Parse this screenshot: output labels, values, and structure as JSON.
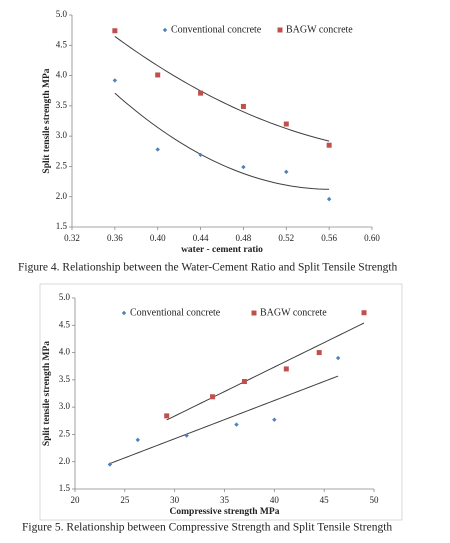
{
  "chart_data": [
    {
      "type": "scatter",
      "x_label": "water - cement ratio",
      "y_label": "Split tensile strength MPa",
      "caption": "Figure 4. Relationship between the Water-Cement Ratio and Split Tensile Strength",
      "xlim": [
        0.32,
        0.6
      ],
      "xticks": [
        0.32,
        0.36,
        {
          "value": 0.4,
          "label": "0.40"
        },
        0.44,
        0.48,
        0.52,
        0.56,
        {
          "value": 0.6,
          "label": "0.60"
        }
      ],
      "ylim": [
        1.5,
        5.0
      ],
      "yticks": [
        1.5,
        {
          "value": 2,
          "label": "2.0"
        },
        2.5,
        {
          "value": 3,
          "label": "3.0"
        },
        3.5,
        {
          "value": 4,
          "label": "4.0"
        },
        4.5,
        {
          "value": 5,
          "label": "5.0"
        }
      ],
      "trendline": "poly2",
      "series": [
        {
          "name": "Conventional concrete",
          "color": "#4f81bd",
          "marker": "diamond",
          "x": [
            0.36,
            0.4,
            0.44,
            0.48,
            0.52,
            0.56
          ],
          "values": [
            3.92,
            2.78,
            2.69,
            2.49,
            2.41,
            1.96
          ]
        },
        {
          "name": "BAGW concrete",
          "color": "#c0504d",
          "marker": "square",
          "x": [
            0.36,
            0.4,
            0.44,
            0.48,
            0.52,
            0.56
          ],
          "values": [
            4.74,
            4.01,
            3.71,
            3.49,
            3.2,
            2.85
          ]
        }
      ]
    },
    {
      "type": "scatter",
      "x_label": "Compressive strength MPa",
      "y_label": "Split tensile strength MPa",
      "caption": "Figure 5. Relationship between Compressive Strength and Split Tensile Strength",
      "xlim": [
        20,
        50
      ],
      "xticks": [
        20,
        25,
        30,
        35,
        40,
        45,
        50
      ],
      "ylim": [
        1.5,
        5.0
      ],
      "yticks": [
        1.5,
        {
          "value": 2,
          "label": "2.0"
        },
        2.5,
        {
          "value": 3,
          "label": "3.0"
        },
        3.5,
        {
          "value": 4,
          "label": "4.0"
        },
        4.5,
        {
          "value": 5,
          "label": "5.0"
        }
      ],
      "trendline": "linear",
      "series": [
        {
          "name": "Conventional concrete",
          "color": "#4f81bd",
          "marker": "diamond",
          "x": [
            23.5,
            26.3,
            31.2,
            36.2,
            40,
            46.4
          ],
          "values": [
            1.95,
            2.4,
            2.48,
            2.68,
            2.77,
            3.9
          ]
        },
        {
          "name": "BAGW concrete",
          "color": "#c0504d",
          "marker": "square",
          "x": [
            29.2,
            33.8,
            37,
            41.2,
            44.5,
            49
          ],
          "values": [
            2.84,
            3.19,
            3.47,
            3.7,
            4.0,
            4.73
          ]
        }
      ]
    }
  ]
}
